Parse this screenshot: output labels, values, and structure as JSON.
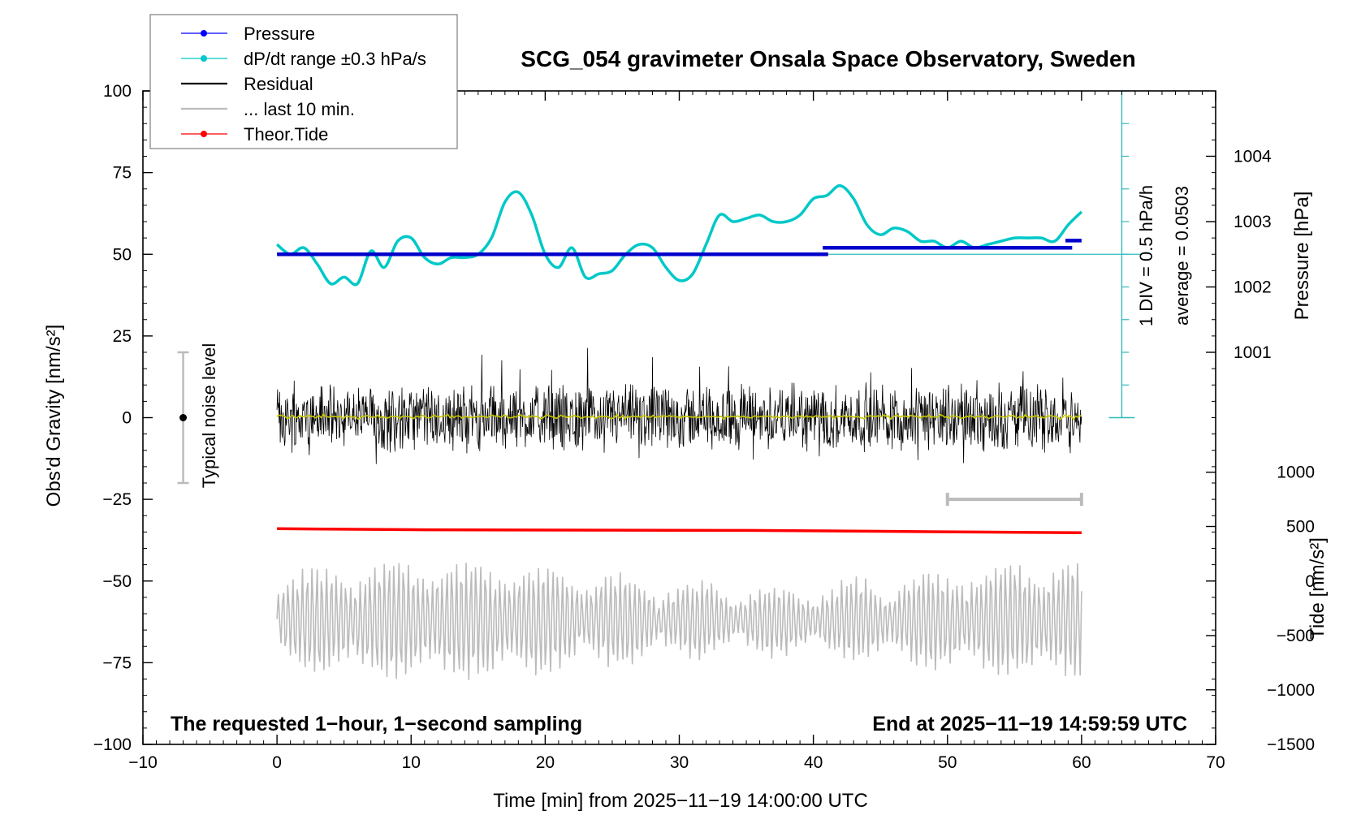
{
  "chart_data": {
    "type": "line",
    "title": "SCG_054 gravimeter Onsala Space Observatory, Sweden",
    "xlabel": "Time [min] from 2025−11−19 14:00:00 UTC",
    "ylabel_left": "Obs'd Gravity [nm/s²]",
    "ylabel_right_pressure": "Pressure [hPa]",
    "ylabel_right_tide": "Tide [nm/s²]",
    "xlim": [
      -10,
      70
    ],
    "ylim": [
      -100,
      100
    ],
    "x_ticks": [
      -10,
      0,
      10,
      20,
      30,
      40,
      50,
      60,
      70
    ],
    "x_tick_labels": [
      "−10",
      "0",
      "10",
      "20",
      "30",
      "40",
      "50",
      "60",
      "70"
    ],
    "y_ticks": [
      -100,
      -75,
      -50,
      -25,
      0,
      25,
      50,
      75,
      100
    ],
    "y_tick_labels": [
      "−100",
      "−75",
      "−50",
      "−25",
      "0",
      "25",
      "50",
      "75",
      "100"
    ],
    "pressure_ticks": [
      1001,
      1002,
      1003,
      1004
    ],
    "pressure_ticks_gravity": [
      20,
      40,
      60,
      80
    ],
    "tide_ticks": [
      -1500,
      -1000,
      -500,
      0,
      500,
      1000
    ],
    "tide_tick_labels": [
      "−1500",
      "−1000",
      "−500",
      "0",
      "500",
      "1000"
    ],
    "tide_ticks_gravity": [
      -100,
      -83.3,
      -66.7,
      -50,
      -33.3,
      -16.7
    ],
    "grid": false,
    "legend_position": "top-left",
    "legend": [
      {
        "label": "Pressure",
        "color": "#0000ff",
        "marker": true
      },
      {
        "label": "dP/dt range ±0.3 hPa/s",
        "color": "#00c8c8",
        "marker": true
      },
      {
        "label": "Residual",
        "color": "#000000",
        "marker": false
      },
      {
        "label": "... last 10 min.",
        "color": "#bbbbbb",
        "marker": false
      },
      {
        "label": "Theor.Tide",
        "color": "#ff0000",
        "marker": true
      }
    ],
    "series": [
      {
        "name": "Pressure",
        "color": "#0000cc",
        "segments": [
          {
            "x": [
              0,
              41.1
            ],
            "y": [
              50,
              50
            ]
          },
          {
            "x": [
              40.7,
              59.3
            ],
            "y": [
              52,
              52
            ]
          },
          {
            "x": [
              58.8,
              60
            ],
            "y": [
              54.2,
              54.2
            ]
          }
        ]
      },
      {
        "name": "dP/dt range ±0.3 hPa/s",
        "color": "#00c8c8",
        "x": [
          0,
          1,
          2,
          3,
          4,
          5,
          6,
          7,
          8,
          9,
          10,
          11,
          12,
          13,
          14,
          15,
          16,
          17,
          18,
          19,
          20,
          21,
          22,
          23,
          24,
          25,
          26,
          27,
          28,
          29,
          30,
          31,
          32,
          33,
          34,
          35,
          36,
          37,
          38,
          39,
          40,
          41,
          42,
          43,
          44,
          45,
          46,
          47,
          48,
          49,
          50,
          51,
          52,
          53,
          54,
          55,
          56,
          57,
          58,
          59,
          60
        ],
        "y": [
          53,
          50,
          52,
          47,
          41,
          43,
          41,
          51,
          46,
          54,
          55,
          49,
          47,
          49,
          49,
          50,
          55,
          66,
          69,
          62,
          50,
          46,
          52,
          43,
          44,
          45,
          50,
          53,
          52,
          46,
          42,
          44,
          53,
          62,
          60,
          61,
          62,
          60,
          60,
          62,
          67,
          68,
          71,
          67,
          59,
          56,
          58,
          57,
          54,
          54,
          52,
          54,
          52,
          53,
          54,
          55,
          55,
          55,
          54,
          59,
          63
        ]
      },
      {
        "name": "Residual",
        "color": "#000000",
        "x_range": [
          0,
          60
        ],
        "center": 0,
        "typical_amplitude": 10,
        "min": -31,
        "max": 29
      },
      {
        "name": "Running mean",
        "color": "#c8c800",
        "x_range": [
          0,
          60
        ],
        "center": 0.3
      },
      {
        "name": "Theor.Tide",
        "color": "#ff0000",
        "x": [
          0,
          11,
          35,
          46,
          52,
          60
        ],
        "y": [
          -34,
          -34.3,
          -34.5,
          -34.8,
          -35,
          -35.2
        ]
      },
      {
        "name": "... last 10 min.",
        "color": "#bbbbbb",
        "x_range": [
          0,
          60
        ],
        "center": -62,
        "min": -85,
        "max": -40
      }
    ],
    "annotations": {
      "left_bottom": "The requested 1−hour, 1−second sampling",
      "right_bottom": "End at 2025−11−19 14:59:59 UTC",
      "noise_label": "Typical noise level",
      "noise_bar": {
        "x": -7,
        "center": 0,
        "low": -20,
        "high": 20
      },
      "scale_label_1": "1 DIV = 0.5 hPa/h",
      "scale_label_2": "average = 0.0503",
      "pressure_rate_scale": {
        "x": 63,
        "bottom": 0,
        "top": 100,
        "ref": 50,
        "tick_step": 10
      },
      "last10_bracket": {
        "x_from": 50,
        "x_to": 60,
        "y": -25
      }
    }
  }
}
